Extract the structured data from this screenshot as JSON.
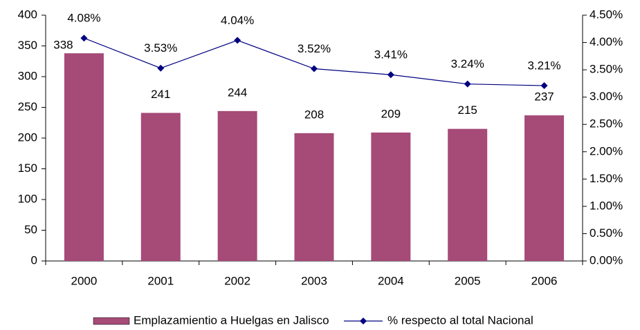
{
  "chart_data": {
    "type": "bar",
    "categories": [
      "2000",
      "2001",
      "2002",
      "2003",
      "2004",
      "2005",
      "2006"
    ],
    "series": [
      {
        "name": "Emplazamientio a Huelgas en Jalisco",
        "type": "bar",
        "color": "#a64a78",
        "values": [
          338,
          241,
          244,
          208,
          209,
          215,
          237
        ]
      },
      {
        "name": "% respecto al total Nacional",
        "type": "line",
        "axis": "y2",
        "color": "#000080",
        "values": [
          4.08,
          3.53,
          4.04,
          3.52,
          3.41,
          3.24,
          3.21
        ],
        "value_labels": [
          "4.08%",
          "3.53%",
          "4.04%",
          "3.52%",
          "3.41%",
          "3.24%",
          "3.21%"
        ]
      }
    ],
    "ylim": [
      0,
      400
    ],
    "yticks": [
      0,
      50,
      100,
      150,
      200,
      250,
      300,
      350,
      400
    ],
    "y2lim": [
      0,
      4.5
    ],
    "y2ticks": [
      {
        "value": 0,
        "label": "0.00%"
      },
      {
        "value": 0.5,
        "label": "0.50%"
      },
      {
        "value": 1,
        "label": "1.00%"
      },
      {
        "value": 1.5,
        "label": "1.50%"
      },
      {
        "value": 2,
        "label": "2.00%"
      },
      {
        "value": 2.5,
        "label": "2.50%"
      },
      {
        "value": 3,
        "label": "3.00%"
      },
      {
        "value": 3.5,
        "label": "3.50%"
      },
      {
        "value": 4,
        "label": "4.00%"
      },
      {
        "value": 4.5,
        "label": "4.50%"
      }
    ],
    "legend": "bottom"
  }
}
